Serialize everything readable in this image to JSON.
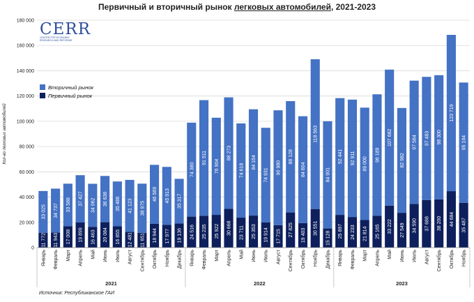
{
  "title_parts": {
    "before": "Первичный и вторичный рынок ",
    "underlined": "легковых автомобилей",
    "after": ", 2021-2023"
  },
  "source": "Источник: Республиканское ГАИ",
  "logo": {
    "name": "CERR",
    "tagline": "CENTER FOR ECONOMIC RESEARCH AND REFORMS"
  },
  "colors": {
    "primary": "#0d1f5c",
    "secondary": "#4472c4",
    "grid": "#d9d9d9"
  },
  "chart_data": {
    "type": "bar",
    "stacked": true,
    "title": "Первичный и вторичный рынок легковых автомобилей, 2021-2023",
    "ylabel": "Кол-во легковых автомобилей",
    "xlabel": "",
    "ylim": [
      0,
      180000
    ],
    "yticks": [
      0,
      20000,
      40000,
      60000,
      80000,
      100000,
      120000,
      140000,
      160000,
      180000
    ],
    "ytick_labels": [
      "0",
      "20 000",
      "40 000",
      "60 000",
      "80 000",
      "100 000",
      "120 000",
      "140 000",
      "160 000",
      "180 000"
    ],
    "grid": true,
    "legend_position": "top-left",
    "categories": [
      "Январь",
      "Февраль",
      "Март",
      "Апрель",
      "Май",
      "Июнь",
      "Июль",
      "Август",
      "Сентябрь",
      "Октябрь",
      "Ноябрь",
      "Декабрь",
      "Январь",
      "Февраль",
      "Март",
      "Апрель",
      "Май",
      "Июнь",
      "Июль",
      "Август",
      "Сентябрь",
      "Октябрь",
      "Ноябрь",
      "Декабрь",
      "Январь",
      "Февраль",
      "Март",
      "Апрель",
      "Май",
      "Июнь",
      "Июль",
      "Август",
      "Сентябрь",
      "Октябрь",
      "Ноябрь"
    ],
    "groups": [
      {
        "label": "2021",
        "count": 12
      },
      {
        "label": "2022",
        "count": 12
      },
      {
        "label": "2023",
        "count": 11
      }
    ],
    "series": [
      {
        "name": "Первичный рынок",
        "values": [
          11772,
          11943,
          17008,
          19899,
          16463,
          20084,
          16855,
          12481,
          11651,
          18944,
          17977,
          19136,
          24516,
          25235,
          25922,
          30668,
          23711,
          25353,
          19914,
          17715,
          27825,
          19403,
          30551,
          15128,
          25897,
          24233,
          21814,
          25165,
          33222,
          27549,
          34590,
          37688,
          38200,
          44684,
          35487
        ],
        "labels": [
          "11 772",
          "11 943",
          "17 008",
          "19 899",
          "16 463",
          "20 084",
          "16 855",
          "12 481",
          "11 651",
          "18 944",
          "17 977",
          "19 136",
          "24 516",
          "25 235",
          "25 922",
          "30 668",
          "23 711",
          "25 353",
          "19 914",
          "17 715",
          "27 825",
          "19 403",
          "30 551",
          "15 128",
          "25 897",
          "24 233",
          "21 814",
          "25 165",
          "33 222",
          "27 549",
          "34 590",
          "37 688",
          "38 200",
          "44 684",
          "35 487"
        ]
      },
      {
        "name": "Вторичный рынок",
        "values": [
          33025,
          34737,
          33588,
          37427,
          34062,
          36636,
          35486,
          41123,
          38975,
          46569,
          45913,
          35317,
          74380,
          91511,
          76904,
          88273,
          74618,
          84164,
          74931,
          90980,
          88128,
          84604,
          118563,
          84901,
          92441,
          92911,
          89000,
          96189,
          107682,
          82982,
          97584,
          97483,
          98300,
          123719,
          95194
        ],
        "labels": [
          "33 025",
          "34 737",
          "33 588",
          "37 427",
          "34 062",
          "36 636",
          "35 486",
          "41 123",
          "38 975",
          "46 569",
          "45 913",
          "35 317",
          "74 380",
          "91 511",
          "76 904",
          "88 273",
          "74 618",
          "84 164",
          "74 931",
          "90 980",
          "88 128",
          "84 604",
          "118 563",
          "84 901",
          "92 441",
          "92 911",
          "89 000",
          "96 189",
          "107 682",
          "82 982",
          "97 584",
          "97 483",
          "98 300",
          "123 719",
          "95 194"
        ]
      }
    ]
  }
}
